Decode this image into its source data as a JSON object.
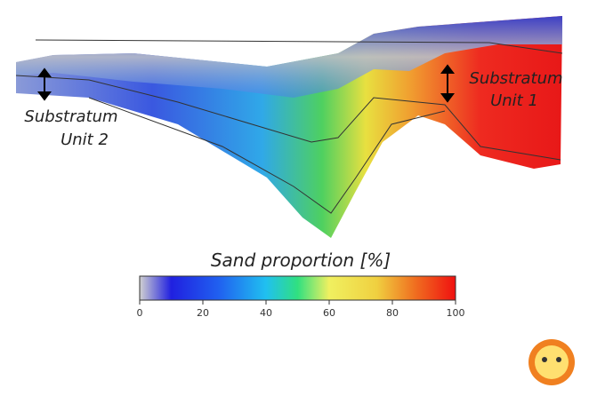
{
  "labels": {
    "unit2": [
      "Substratum",
      "Unit 2"
    ],
    "unit1": [
      "Substratum",
      "Unit 1"
    ]
  },
  "colorbar": {
    "title": "Sand proportion [%]",
    "lim": [
      0,
      100
    ],
    "ticks": [
      0,
      20,
      40,
      60,
      80,
      100
    ]
  }
}
